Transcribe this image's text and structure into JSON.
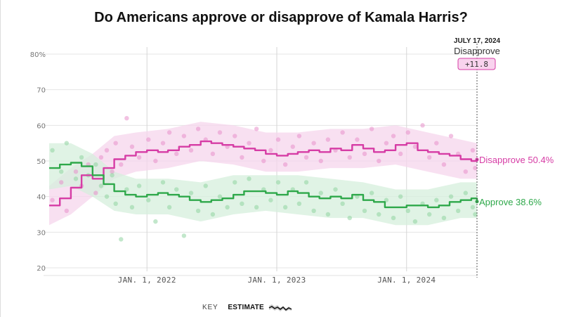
{
  "title": "Do Americans approve or disapprove of Kamala Harris?",
  "key": {
    "label": "KEY",
    "estimate_label": "ESTIMATE"
  },
  "marker": {
    "date_label": "JULY 17, 2024",
    "series_label": "Disapprove",
    "spread_label": "+11.8"
  },
  "colors": {
    "approve": "#2ea84a",
    "disapprove": "#d63ca5",
    "approve_band": "#d6efdc",
    "disapprove_band": "#f6d6ec"
  },
  "chart_data": {
    "type": "line",
    "title": "Do Americans approve or disapprove of Kamala Harris?",
    "xlabel": "",
    "ylabel": "",
    "ylim": [
      18,
      82
    ],
    "xlim": [
      "2021-04-01",
      "2024-07-17"
    ],
    "y_ticks": [
      20,
      30,
      40,
      50,
      60,
      70,
      80
    ],
    "y_tick_labels": [
      "20",
      "30",
      "40",
      "50",
      "60",
      "70",
      "80%"
    ],
    "x_ticks": [
      "2022-01-01",
      "2023-01-01",
      "2024-01-01"
    ],
    "x_tick_labels": [
      "JAN. 1, 2022",
      "JAN. 1, 2023",
      "JAN. 1, 2024"
    ],
    "grid": true,
    "series": [
      {
        "name": "Disapprove",
        "end_label": "Disapprove 50.4%",
        "color": "#d63ca5",
        "points": [
          [
            "2021-04-01",
            37.5
          ],
          [
            "2021-05-01",
            39.5
          ],
          [
            "2021-06-01",
            42.5
          ],
          [
            "2021-07-01",
            46.0
          ],
          [
            "2021-08-01",
            45.0
          ],
          [
            "2021-09-01",
            48.0
          ],
          [
            "2021-10-01",
            50.5
          ],
          [
            "2021-11-01",
            51.5
          ],
          [
            "2021-12-01",
            52.5
          ],
          [
            "2022-01-01",
            53.0
          ],
          [
            "2022-02-01",
            52.5
          ],
          [
            "2022-03-01",
            53.0
          ],
          [
            "2022-04-01",
            54.0
          ],
          [
            "2022-05-01",
            54.5
          ],
          [
            "2022-06-01",
            55.5
          ],
          [
            "2022-07-01",
            55.0
          ],
          [
            "2022-08-01",
            54.5
          ],
          [
            "2022-09-01",
            54.0
          ],
          [
            "2022-10-01",
            53.5
          ],
          [
            "2022-11-01",
            53.0
          ],
          [
            "2022-12-01",
            52.0
          ],
          [
            "2023-01-01",
            51.5
          ],
          [
            "2023-02-01",
            52.0
          ],
          [
            "2023-03-01",
            52.5
          ],
          [
            "2023-04-01",
            53.0
          ],
          [
            "2023-05-01",
            52.5
          ],
          [
            "2023-06-01",
            53.5
          ],
          [
            "2023-07-01",
            53.0
          ],
          [
            "2023-08-01",
            54.5
          ],
          [
            "2023-09-01",
            53.5
          ],
          [
            "2023-10-01",
            52.5
          ],
          [
            "2023-11-01",
            53.0
          ],
          [
            "2023-12-01",
            54.5
          ],
          [
            "2024-01-01",
            55.0
          ],
          [
            "2024-02-01",
            53.0
          ],
          [
            "2024-03-01",
            52.5
          ],
          [
            "2024-04-01",
            52.0
          ],
          [
            "2024-05-01",
            51.5
          ],
          [
            "2024-06-01",
            50.5
          ],
          [
            "2024-07-01",
            50.0
          ],
          [
            "2024-07-17",
            50.4
          ]
        ],
        "band": [
          [
            "2021-04-01",
            32,
            43
          ],
          [
            "2021-06-01",
            35,
            48
          ],
          [
            "2021-08-01",
            40,
            52
          ],
          [
            "2021-10-01",
            45,
            57
          ],
          [
            "2021-12-01",
            47,
            58
          ],
          [
            "2022-03-01",
            48,
            59
          ],
          [
            "2022-06-01",
            50,
            61
          ],
          [
            "2022-09-01",
            49,
            60
          ],
          [
            "2022-12-01",
            47,
            58
          ],
          [
            "2023-03-01",
            47,
            58
          ],
          [
            "2023-06-01",
            48,
            59
          ],
          [
            "2023-09-01",
            48,
            59
          ],
          [
            "2023-12-01",
            49,
            60
          ],
          [
            "2024-03-01",
            47,
            58
          ],
          [
            "2024-06-01",
            45,
            56
          ],
          [
            "2024-07-17",
            45,
            55
          ]
        ]
      },
      {
        "name": "Approve",
        "end_label": "Approve 38.6%",
        "color": "#2ea84a",
        "points": [
          [
            "2021-04-01",
            48.0
          ],
          [
            "2021-05-01",
            49.0
          ],
          [
            "2021-06-01",
            49.5
          ],
          [
            "2021-07-01",
            48.5
          ],
          [
            "2021-08-01",
            46.0
          ],
          [
            "2021-09-01",
            43.5
          ],
          [
            "2021-10-01",
            41.5
          ],
          [
            "2021-11-01",
            40.5
          ],
          [
            "2021-12-01",
            40.0
          ],
          [
            "2022-01-01",
            40.5
          ],
          [
            "2022-02-01",
            41.0
          ],
          [
            "2022-03-01",
            40.5
          ],
          [
            "2022-04-01",
            40.0
          ],
          [
            "2022-05-01",
            39.0
          ],
          [
            "2022-06-01",
            38.5
          ],
          [
            "2022-07-01",
            39.0
          ],
          [
            "2022-08-01",
            39.5
          ],
          [
            "2022-09-01",
            40.5
          ],
          [
            "2022-10-01",
            41.5
          ],
          [
            "2022-11-01",
            41.5
          ],
          [
            "2022-12-01",
            41.0
          ],
          [
            "2023-01-01",
            40.5
          ],
          [
            "2023-02-01",
            41.5
          ],
          [
            "2023-03-01",
            41.0
          ],
          [
            "2023-04-01",
            40.0
          ],
          [
            "2023-05-01",
            39.5
          ],
          [
            "2023-06-01",
            40.0
          ],
          [
            "2023-07-01",
            39.5
          ],
          [
            "2023-08-01",
            40.5
          ],
          [
            "2023-09-01",
            39.0
          ],
          [
            "2023-10-01",
            38.5
          ],
          [
            "2023-11-01",
            37.0
          ],
          [
            "2023-12-01",
            37.0
          ],
          [
            "2024-01-01",
            37.5
          ],
          [
            "2024-02-01",
            37.5
          ],
          [
            "2024-03-01",
            37.0
          ],
          [
            "2024-04-01",
            37.5
          ],
          [
            "2024-05-01",
            38.5
          ],
          [
            "2024-06-01",
            39.0
          ],
          [
            "2024-07-01",
            39.5
          ],
          [
            "2024-07-17",
            38.6
          ]
        ],
        "band": [
          [
            "2021-04-01",
            42,
            55
          ],
          [
            "2021-06-01",
            43,
            55
          ],
          [
            "2021-08-01",
            40,
            52
          ],
          [
            "2021-10-01",
            36,
            47
          ],
          [
            "2021-12-01",
            35,
            45
          ],
          [
            "2022-03-01",
            35,
            45
          ],
          [
            "2022-06-01",
            33,
            44
          ],
          [
            "2022-09-01",
            35,
            46
          ],
          [
            "2022-12-01",
            36,
            46
          ],
          [
            "2023-03-01",
            35,
            46
          ],
          [
            "2023-06-01",
            34,
            45
          ],
          [
            "2023-09-01",
            34,
            44
          ],
          [
            "2023-12-01",
            32,
            42
          ],
          [
            "2024-03-01",
            32,
            42
          ],
          [
            "2024-06-01",
            34,
            44
          ],
          [
            "2024-07-17",
            34,
            44
          ]
        ]
      }
    ],
    "poll_dots": {
      "disapprove": [
        [
          "2021-04-10",
          39
        ],
        [
          "2021-05-05",
          44
        ],
        [
          "2021-05-20",
          36
        ],
        [
          "2021-06-15",
          47
        ],
        [
          "2021-07-01",
          43
        ],
        [
          "2021-07-20",
          49
        ],
        [
          "2021-08-10",
          41
        ],
        [
          "2021-08-25",
          51
        ],
        [
          "2021-09-10",
          53
        ],
        [
          "2021-09-25",
          47
        ],
        [
          "2021-10-05",
          55
        ],
        [
          "2021-10-20",
          49
        ],
        [
          "2021-11-05",
          62
        ],
        [
          "2021-11-20",
          54
        ],
        [
          "2021-12-10",
          51
        ],
        [
          "2022-01-05",
          56
        ],
        [
          "2022-01-25",
          50
        ],
        [
          "2022-02-15",
          55
        ],
        [
          "2022-03-05",
          58
        ],
        [
          "2022-03-25",
          52
        ],
        [
          "2022-04-15",
          57
        ],
        [
          "2022-05-05",
          53
        ],
        [
          "2022-05-25",
          59
        ],
        [
          "2022-06-15",
          56
        ],
        [
          "2022-07-05",
          52
        ],
        [
          "2022-07-25",
          58
        ],
        [
          "2022-08-15",
          54
        ],
        [
          "2022-09-05",
          57
        ],
        [
          "2022-09-25",
          51
        ],
        [
          "2022-10-15",
          55
        ],
        [
          "2022-11-05",
          59
        ],
        [
          "2022-11-25",
          50
        ],
        [
          "2022-12-15",
          53
        ],
        [
          "2023-01-05",
          56
        ],
        [
          "2023-01-25",
          49
        ],
        [
          "2023-02-15",
          54
        ],
        [
          "2023-03-05",
          57
        ],
        [
          "2023-03-25",
          51
        ],
        [
          "2023-04-15",
          55
        ],
        [
          "2023-05-05",
          50
        ],
        [
          "2023-05-25",
          56
        ],
        [
          "2023-06-15",
          53
        ],
        [
          "2023-07-05",
          58
        ],
        [
          "2023-07-25",
          51
        ],
        [
          "2023-08-15",
          56
        ],
        [
          "2023-09-05",
          52
        ],
        [
          "2023-09-25",
          59
        ],
        [
          "2023-10-15",
          50
        ],
        [
          "2023-11-05",
          55
        ],
        [
          "2023-11-25",
          57
        ],
        [
          "2023-12-15",
          52
        ],
        [
          "2024-01-05",
          58
        ],
        [
          "2024-01-25",
          54
        ],
        [
          "2024-02-15",
          60
        ],
        [
          "2024-03-05",
          51
        ],
        [
          "2024-03-25",
          55
        ],
        [
          "2024-04-15",
          49
        ],
        [
          "2024-05-05",
          57
        ],
        [
          "2024-05-25",
          52
        ],
        [
          "2024-06-15",
          47
        ],
        [
          "2024-07-05",
          53
        ],
        [
          "2024-07-12",
          48
        ]
      ],
      "approve": [
        [
          "2021-04-10",
          53
        ],
        [
          "2021-05-05",
          47
        ],
        [
          "2021-05-20",
          55
        ],
        [
          "2021-06-15",
          45
        ],
        [
          "2021-07-01",
          51
        ],
        [
          "2021-07-20",
          46
        ],
        [
          "2021-08-10",
          49
        ],
        [
          "2021-08-25",
          43
        ],
        [
          "2021-09-10",
          40
        ],
        [
          "2021-09-25",
          46
        ],
        [
          "2021-10-05",
          38
        ],
        [
          "2021-10-20",
          28
        ],
        [
          "2021-11-05",
          42
        ],
        [
          "2021-11-20",
          37
        ],
        [
          "2021-12-10",
          43
        ],
        [
          "2022-01-05",
          39
        ],
        [
          "2022-01-25",
          33
        ],
        [
          "2022-02-15",
          44
        ],
        [
          "2022-03-05",
          37
        ],
        [
          "2022-03-25",
          42
        ],
        [
          "2022-04-15",
          29
        ],
        [
          "2022-05-05",
          41
        ],
        [
          "2022-05-25",
          36
        ],
        [
          "2022-06-15",
          43
        ],
        [
          "2022-07-05",
          35
        ],
        [
          "2022-07-25",
          40
        ],
        [
          "2022-08-15",
          37
        ],
        [
          "2022-09-05",
          44
        ],
        [
          "2022-09-25",
          38
        ],
        [
          "2022-10-15",
          45
        ],
        [
          "2022-11-05",
          37
        ],
        [
          "2022-11-25",
          42
        ],
        [
          "2022-12-15",
          39
        ],
        [
          "2023-01-05",
          44
        ],
        [
          "2023-01-25",
          37
        ],
        [
          "2023-02-15",
          42
        ],
        [
          "2023-03-05",
          38
        ],
        [
          "2023-03-25",
          44
        ],
        [
          "2023-04-15",
          36
        ],
        [
          "2023-05-05",
          41
        ],
        [
          "2023-05-25",
          35
        ],
        [
          "2023-06-15",
          42
        ],
        [
          "2023-07-05",
          38
        ],
        [
          "2023-07-25",
          34
        ],
        [
          "2023-08-15",
          40
        ],
        [
          "2023-09-05",
          36
        ],
        [
          "2023-09-25",
          41
        ],
        [
          "2023-10-15",
          35
        ],
        [
          "2023-11-05",
          39
        ],
        [
          "2023-11-25",
          34
        ],
        [
          "2023-12-15",
          40
        ],
        [
          "2024-01-05",
          36
        ],
        [
          "2024-01-25",
          33
        ],
        [
          "2024-02-15",
          38
        ],
        [
          "2024-03-05",
          35
        ],
        [
          "2024-03-25",
          39
        ],
        [
          "2024-04-15",
          34
        ],
        [
          "2024-05-05",
          40
        ],
        [
          "2024-05-25",
          36
        ],
        [
          "2024-06-15",
          41
        ],
        [
          "2024-07-05",
          37
        ],
        [
          "2024-07-12",
          35
        ]
      ]
    }
  }
}
